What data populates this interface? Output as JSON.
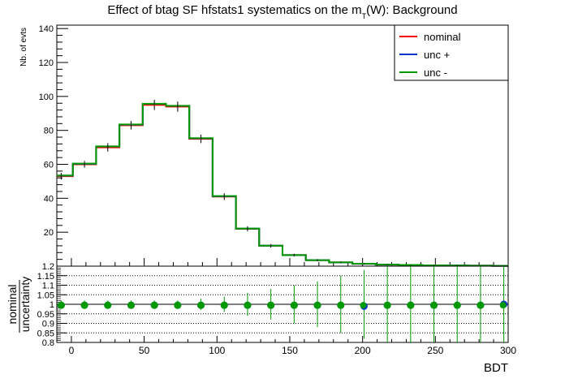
{
  "chart_data": [
    {
      "type": "line",
      "title_main": "Effect of btag SF hfstats1 systematics on the m",
      "title_sub": "T",
      "title_end": "(W): Background",
      "ylabel": "Nb. of evts",
      "xlim": [
        -10,
        300
      ],
      "ylim": [
        0,
        142
      ],
      "yticks": [
        20,
        40,
        60,
        80,
        100,
        120,
        140
      ],
      "x_edges": [
        -10,
        0,
        10,
        20,
        30,
        40,
        50,
        60,
        70,
        80,
        90,
        100,
        110,
        120,
        130,
        140,
        150,
        160,
        170,
        180,
        190,
        200,
        210,
        220,
        230,
        240,
        250,
        260,
        270,
        280,
        290,
        300
      ],
      "x_centers": [
        -7,
        9,
        25,
        41,
        57,
        73,
        89,
        105,
        121,
        137,
        153,
        169,
        185,
        201,
        217,
        233,
        249,
        265,
        281,
        297
      ],
      "bin_edges": [
        -16,
        1,
        17,
        33,
        49,
        65,
        81,
        97,
        113,
        129,
        145,
        161,
        177,
        193,
        209,
        225,
        241,
        257,
        273,
        289,
        305
      ],
      "series": [
        {
          "name": "nominal",
          "color": "#ff0000",
          "values": [
            53,
            60,
            70,
            83,
            95,
            94,
            75,
            41,
            22,
            12,
            6.5,
            3.5,
            2.2,
            1.4,
            0.9,
            0.7,
            0.5,
            0.4,
            0.3,
            0.2
          ]
        },
        {
          "name": "unc +",
          "color": "#0033cc",
          "values": [
            53.3,
            60.3,
            70.5,
            83.4,
            95.6,
            94.4,
            75.3,
            41.2,
            22.1,
            12.05,
            6.53,
            3.51,
            2.21,
            1.39,
            0.9,
            0.7,
            0.5,
            0.4,
            0.3,
            0.2
          ]
        },
        {
          "name": "unc -",
          "color": "#009900",
          "values": [
            53.4,
            60.4,
            70.6,
            83.5,
            95.7,
            94.5,
            75.4,
            41.3,
            22.15,
            12.08,
            6.54,
            3.52,
            2.22,
            1.41,
            0.91,
            0.71,
            0.5,
            0.4,
            0.3,
            0.2
          ]
        }
      ],
      "errors": [
        2,
        2,
        2.5,
        2.5,
        3,
        3,
        2.5,
        2,
        1.5,
        1,
        0.8,
        0.6,
        0.4,
        0.3,
        0.3,
        0.2,
        0.2,
        0.2,
        0.1,
        0.1
      ],
      "legend": {
        "position": "top-right",
        "entries": [
          "nominal",
          "unc +",
          "unc -"
        ]
      }
    },
    {
      "type": "scatter",
      "xlabel": "BDT",
      "ylabel_num": "nominal",
      "ylabel_den": "uncertainty",
      "xlim": [
        -10,
        300
      ],
      "ylim": [
        0.8,
        1.2
      ],
      "yticks": [
        0.8,
        0.85,
        0.9,
        0.95,
        1,
        1.05,
        1.1,
        1.15,
        1.2
      ],
      "ytick_labels": [
        "0.8",
        "0.85",
        "0.9",
        "0.95",
        "1",
        "1.05",
        "1.1",
        "1.15",
        "1.2"
      ],
      "xticks": [
        0,
        50,
        100,
        150,
        200,
        250,
        300
      ],
      "xtick_labels": [
        "0",
        "50",
        "100",
        "150",
        "200",
        "250",
        "300"
      ],
      "grid": "dotted-horizontal",
      "x_centers": [
        -7,
        9,
        25,
        41,
        57,
        73,
        89,
        105,
        121,
        137,
        153,
        169,
        185,
        201,
        217,
        233,
        249,
        265,
        281,
        297
      ],
      "series": [
        {
          "name": "unc +",
          "color": "#0033cc",
          "values": [
            0.995,
            0.995,
            0.995,
            0.995,
            0.995,
            0.995,
            0.995,
            0.995,
            0.995,
            0.995,
            0.995,
            0.995,
            0.995,
            0.99,
            0.995,
            0.995,
            0.995,
            0.995,
            0.995,
            1.0
          ]
        },
        {
          "name": "unc -",
          "color": "#009900",
          "values": [
            0.995,
            0.995,
            0.995,
            0.995,
            0.995,
            0.995,
            0.995,
            0.995,
            0.995,
            0.995,
            0.995,
            0.995,
            0.995,
            0.995,
            0.995,
            0.995,
            0.995,
            0.995,
            0.995,
            0.995
          ]
        }
      ],
      "errors": [
        0.02,
        0.02,
        0.02,
        0.02,
        0.02,
        0.02,
        0.03,
        0.04,
        0.06,
        0.08,
        0.1,
        0.12,
        0.15,
        0.18,
        0.2,
        0.2,
        0.2,
        0.2,
        0.2,
        0.2
      ]
    }
  ]
}
